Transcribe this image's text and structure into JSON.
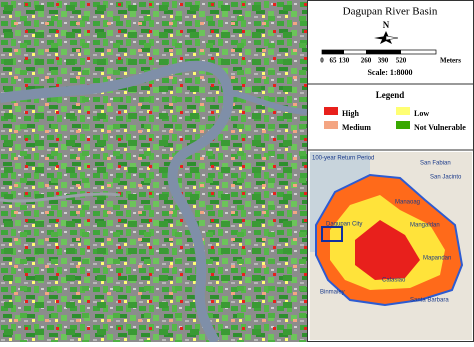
{
  "map": {
    "title": "Dagupan River Basin",
    "north": "N",
    "scale_bar": {
      "ticks": [
        "0",
        "65",
        "130",
        "260",
        "390",
        "520"
      ],
      "unit": "Meters"
    },
    "scale": "Scale: 1:8000",
    "legend": {
      "title": "Legend",
      "items": [
        {
          "label": "High",
          "color": "#e8201c"
        },
        {
          "label": "Low",
          "color": "#ffff73"
        },
        {
          "label": "Medium",
          "color": "#f4a582"
        },
        {
          "label": "Not Vulnerable",
          "color": "#38a800"
        }
      ]
    },
    "inset": {
      "title": "100-year Return Period",
      "places": [
        "San Fabian",
        "San Jacinto",
        "Manaoag",
        "Mangaldan",
        "Dagupan City",
        "Mapandan",
        "Calasiao",
        "Binmaley",
        "Santa Barbara"
      ]
    }
  }
}
